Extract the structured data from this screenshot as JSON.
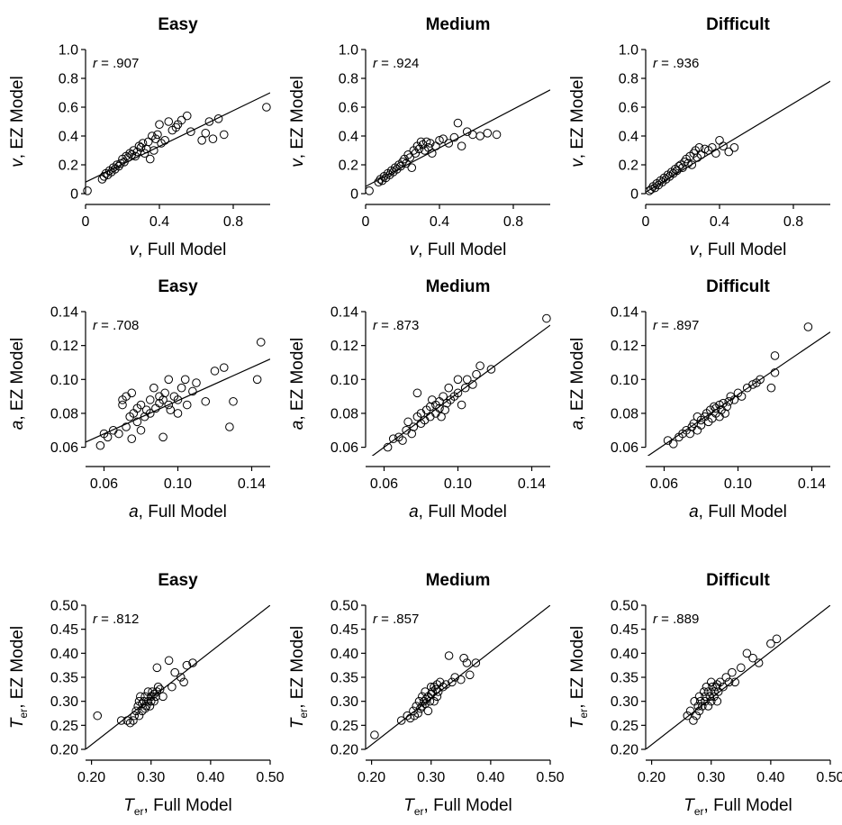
{
  "chart_data": [
    {
      "type": "scatter",
      "title": "Easy",
      "param": "v",
      "xlabel": "Full Model",
      "ylabel": "EZ Model",
      "r_label": "r",
      "r_value": ".907",
      "xlim": [
        0,
        1.0
      ],
      "ylim": [
        0,
        1.0
      ],
      "xticks": [
        "0",
        "0.4",
        "0.8"
      ],
      "xtick_values": [
        0,
        0.4,
        0.8
      ],
      "yticks": [
        "0",
        "0.2",
        "0.4",
        "0.6",
        "0.8",
        "1.0"
      ],
      "ytick_values": [
        0,
        0.2,
        0.4,
        0.6,
        0.8,
        1.0
      ],
      "fit_line": [
        [
          0,
          0.08
        ],
        [
          1,
          0.7
        ]
      ],
      "x": [
        0.01,
        0.09,
        0.1,
        0.11,
        0.12,
        0.13,
        0.14,
        0.15,
        0.16,
        0.17,
        0.18,
        0.19,
        0.2,
        0.21,
        0.22,
        0.23,
        0.24,
        0.25,
        0.26,
        0.27,
        0.28,
        0.29,
        0.3,
        0.31,
        0.32,
        0.33,
        0.34,
        0.35,
        0.36,
        0.37,
        0.38,
        0.39,
        0.4,
        0.41,
        0.43,
        0.45,
        0.47,
        0.49,
        0.5,
        0.52,
        0.55,
        0.57,
        0.63,
        0.65,
        0.67,
        0.69,
        0.72,
        0.75,
        0.98
      ],
      "y": [
        0.02,
        0.1,
        0.12,
        0.14,
        0.13,
        0.16,
        0.15,
        0.18,
        0.17,
        0.2,
        0.19,
        0.21,
        0.24,
        0.22,
        0.26,
        0.25,
        0.28,
        0.27,
        0.3,
        0.26,
        0.29,
        0.33,
        0.32,
        0.35,
        0.28,
        0.31,
        0.36,
        0.24,
        0.4,
        0.3,
        0.38,
        0.41,
        0.48,
        0.35,
        0.37,
        0.5,
        0.44,
        0.46,
        0.48,
        0.51,
        0.54,
        0.43,
        0.37,
        0.42,
        0.5,
        0.38,
        0.52,
        0.41,
        0.6
      ]
    },
    {
      "type": "scatter",
      "title": "Medium",
      "param": "v",
      "xlabel": "Full Model",
      "ylabel": "EZ Model",
      "r_label": "r",
      "r_value": ".924",
      "xlim": [
        0,
        1.0
      ],
      "ylim": [
        0,
        1.0
      ],
      "xticks": [
        "0",
        "0.4",
        "0.8"
      ],
      "xtick_values": [
        0,
        0.4,
        0.8
      ],
      "yticks": [
        "0",
        "0.2",
        "0.4",
        "0.6",
        "0.8",
        "1.0"
      ],
      "ytick_values": [
        0,
        0.2,
        0.4,
        0.6,
        0.8,
        1.0
      ],
      "fit_line": [
        [
          0,
          0.05
        ],
        [
          1,
          0.72
        ]
      ],
      "x": [
        0.02,
        0.07,
        0.08,
        0.09,
        0.1,
        0.11,
        0.12,
        0.13,
        0.14,
        0.15,
        0.16,
        0.17,
        0.18,
        0.19,
        0.2,
        0.21,
        0.22,
        0.23,
        0.24,
        0.25,
        0.26,
        0.27,
        0.28,
        0.29,
        0.3,
        0.31,
        0.32,
        0.33,
        0.34,
        0.35,
        0.36,
        0.38,
        0.4,
        0.42,
        0.45,
        0.48,
        0.5,
        0.52,
        0.55,
        0.58,
        0.62,
        0.66,
        0.71
      ],
      "y": [
        0.02,
        0.08,
        0.1,
        0.09,
        0.12,
        0.11,
        0.14,
        0.13,
        0.16,
        0.15,
        0.18,
        0.17,
        0.2,
        0.19,
        0.22,
        0.24,
        0.21,
        0.27,
        0.25,
        0.18,
        0.3,
        0.28,
        0.33,
        0.31,
        0.36,
        0.34,
        0.3,
        0.36,
        0.32,
        0.35,
        0.28,
        0.33,
        0.37,
        0.38,
        0.35,
        0.39,
        0.49,
        0.33,
        0.43,
        0.41,
        0.4,
        0.42,
        0.41
      ]
    },
    {
      "type": "scatter",
      "title": "Difficult",
      "param": "v",
      "xlabel": "Full Model",
      "ylabel": "EZ Model",
      "r_label": "r",
      "r_value": ".936",
      "xlim": [
        0,
        1.0
      ],
      "ylim": [
        0,
        1.0
      ],
      "xticks": [
        "0",
        "0.4",
        "0.8"
      ],
      "xtick_values": [
        0,
        0.4,
        0.8
      ],
      "yticks": [
        "0",
        "0.2",
        "0.4",
        "0.6",
        "0.8",
        "1.0"
      ],
      "ytick_values": [
        0,
        0.2,
        0.4,
        0.6,
        0.8,
        1.0
      ],
      "fit_line": [
        [
          0,
          0.01
        ],
        [
          1,
          0.78
        ]
      ],
      "x": [
        0.02,
        0.03,
        0.04,
        0.05,
        0.06,
        0.07,
        0.08,
        0.09,
        0.1,
        0.11,
        0.12,
        0.13,
        0.14,
        0.15,
        0.16,
        0.17,
        0.18,
        0.19,
        0.2,
        0.21,
        0.22,
        0.23,
        0.24,
        0.25,
        0.26,
        0.27,
        0.28,
        0.29,
        0.3,
        0.32,
        0.34,
        0.36,
        0.38,
        0.4,
        0.42,
        0.45,
        0.48
      ],
      "y": [
        0.02,
        0.03,
        0.05,
        0.04,
        0.07,
        0.06,
        0.09,
        0.08,
        0.11,
        0.1,
        0.13,
        0.12,
        0.15,
        0.14,
        0.17,
        0.16,
        0.19,
        0.2,
        0.18,
        0.22,
        0.24,
        0.21,
        0.26,
        0.2,
        0.28,
        0.3,
        0.25,
        0.32,
        0.27,
        0.31,
        0.3,
        0.32,
        0.28,
        0.37,
        0.33,
        0.29,
        0.32
      ]
    },
    {
      "type": "scatter",
      "title": "Easy",
      "param": "a",
      "xlabel": "Full Model",
      "ylabel": "EZ Model",
      "r_label": "r",
      "r_value": ".708",
      "xlim": [
        0.05,
        0.15
      ],
      "ylim": [
        0.055,
        0.14
      ],
      "xticks": [
        "0.06",
        "0.10",
        "0.14"
      ],
      "xtick_values": [
        0.06,
        0.1,
        0.14
      ],
      "yticks": [
        "0.06",
        "0.08",
        "0.10",
        "0.12",
        "0.14"
      ],
      "ytick_values": [
        0.06,
        0.08,
        0.1,
        0.12,
        0.14
      ],
      "fit_line": [
        [
          0.05,
          0.063
        ],
        [
          0.15,
          0.112
        ]
      ],
      "x": [
        0.058,
        0.06,
        0.062,
        0.065,
        0.068,
        0.07,
        0.07,
        0.072,
        0.072,
        0.074,
        0.075,
        0.075,
        0.076,
        0.078,
        0.078,
        0.08,
        0.08,
        0.082,
        0.083,
        0.085,
        0.085,
        0.087,
        0.088,
        0.09,
        0.09,
        0.092,
        0.092,
        0.093,
        0.095,
        0.095,
        0.096,
        0.098,
        0.1,
        0.1,
        0.102,
        0.104,
        0.105,
        0.108,
        0.11,
        0.115,
        0.12,
        0.125,
        0.128,
        0.13,
        0.143,
        0.145
      ],
      "y": [
        0.061,
        0.068,
        0.066,
        0.07,
        0.068,
        0.085,
        0.088,
        0.072,
        0.09,
        0.078,
        0.092,
        0.065,
        0.08,
        0.075,
        0.083,
        0.07,
        0.085,
        0.078,
        0.082,
        0.08,
        0.088,
        0.095,
        0.083,
        0.09,
        0.086,
        0.088,
        0.066,
        0.092,
        0.085,
        0.1,
        0.082,
        0.09,
        0.088,
        0.08,
        0.095,
        0.1,
        0.085,
        0.093,
        0.098,
        0.087,
        0.105,
        0.107,
        0.072,
        0.087,
        0.1,
        0.122
      ]
    },
    {
      "type": "scatter",
      "title": "Medium",
      "param": "a",
      "xlabel": "Full Model",
      "ylabel": "EZ Model",
      "r_label": "r",
      "r_value": ".873",
      "xlim": [
        0.05,
        0.15
      ],
      "ylim": [
        0.055,
        0.14
      ],
      "xticks": [
        "0.06",
        "0.10",
        "0.14"
      ],
      "xtick_values": [
        0.06,
        0.1,
        0.14
      ],
      "yticks": [
        "0.06",
        "0.08",
        "0.10",
        "0.12",
        "0.14"
      ],
      "ytick_values": [
        0.06,
        0.08,
        0.1,
        0.12,
        0.14
      ],
      "fit_line": [
        [
          0.05,
          0.052
        ],
        [
          0.15,
          0.132
        ]
      ],
      "x": [
        0.062,
        0.065,
        0.068,
        0.07,
        0.072,
        0.073,
        0.075,
        0.076,
        0.078,
        0.078,
        0.08,
        0.08,
        0.082,
        0.083,
        0.085,
        0.085,
        0.086,
        0.088,
        0.088,
        0.09,
        0.09,
        0.091,
        0.092,
        0.093,
        0.094,
        0.095,
        0.096,
        0.098,
        0.1,
        0.1,
        0.102,
        0.104,
        0.105,
        0.108,
        0.11,
        0.112,
        0.118,
        0.148
      ],
      "y": [
        0.06,
        0.065,
        0.066,
        0.064,
        0.07,
        0.075,
        0.068,
        0.072,
        0.078,
        0.092,
        0.074,
        0.08,
        0.076,
        0.082,
        0.084,
        0.078,
        0.088,
        0.08,
        0.085,
        0.083,
        0.087,
        0.078,
        0.09,
        0.082,
        0.086,
        0.095,
        0.088,
        0.09,
        0.092,
        0.1,
        0.085,
        0.095,
        0.1,
        0.097,
        0.103,
        0.108,
        0.106,
        0.136
      ]
    },
    {
      "type": "scatter",
      "title": "Difficult",
      "param": "a",
      "xlabel": "Full Model",
      "ylabel": "EZ Model",
      "r_label": "r",
      "r_value": ".897",
      "xlim": [
        0.05,
        0.15
      ],
      "ylim": [
        0.055,
        0.14
      ],
      "xticks": [
        "0.06",
        "0.10",
        "0.14"
      ],
      "xtick_values": [
        0.06,
        0.1,
        0.14
      ],
      "yticks": [
        "0.06",
        "0.08",
        "0.10",
        "0.12",
        "0.14"
      ],
      "ytick_values": [
        0.06,
        0.08,
        0.1,
        0.12,
        0.14
      ],
      "fit_line": [
        [
          0.05,
          0.054
        ],
        [
          0.15,
          0.128
        ]
      ],
      "x": [
        0.062,
        0.065,
        0.068,
        0.07,
        0.072,
        0.074,
        0.075,
        0.076,
        0.078,
        0.078,
        0.08,
        0.08,
        0.082,
        0.083,
        0.084,
        0.085,
        0.086,
        0.087,
        0.088,
        0.088,
        0.09,
        0.09,
        0.091,
        0.092,
        0.093,
        0.094,
        0.095,
        0.096,
        0.098,
        0.1,
        0.102,
        0.105,
        0.108,
        0.11,
        0.112,
        0.118,
        0.12,
        0.12,
        0.138
      ],
      "y": [
        0.064,
        0.062,
        0.066,
        0.068,
        0.07,
        0.068,
        0.072,
        0.074,
        0.07,
        0.078,
        0.073,
        0.076,
        0.078,
        0.08,
        0.075,
        0.082,
        0.077,
        0.084,
        0.08,
        0.083,
        0.078,
        0.085,
        0.082,
        0.086,
        0.08,
        0.084,
        0.087,
        0.09,
        0.088,
        0.092,
        0.09,
        0.095,
        0.097,
        0.098,
        0.1,
        0.095,
        0.104,
        0.114,
        0.131
      ]
    },
    {
      "type": "scatter",
      "title": "Easy",
      "param": "T",
      "param_sub": "er",
      "xlabel": "Full Model",
      "ylabel": "EZ Model",
      "r_label": "r",
      "r_value": ".812",
      "xlim": [
        0.19,
        0.5
      ],
      "ylim": [
        0.2,
        0.5
      ],
      "xticks": [
        "0.20",
        "0.30",
        "0.40",
        "0.50"
      ],
      "xtick_values": [
        0.2,
        0.3,
        0.4,
        0.5
      ],
      "yticks": [
        "0.20",
        "0.25",
        "0.30",
        "0.35",
        "0.40",
        "0.45",
        "0.50"
      ],
      "ytick_values": [
        0.2,
        0.25,
        0.3,
        0.35,
        0.4,
        0.45,
        0.5
      ],
      "fit_line": [
        [
          0.19,
          0.2
        ],
        [
          0.5,
          0.5
        ]
      ],
      "x": [
        0.21,
        0.25,
        0.26,
        0.265,
        0.27,
        0.272,
        0.275,
        0.278,
        0.28,
        0.28,
        0.282,
        0.285,
        0.285,
        0.288,
        0.29,
        0.29,
        0.292,
        0.295,
        0.295,
        0.298,
        0.3,
        0.3,
        0.302,
        0.305,
        0.305,
        0.308,
        0.31,
        0.31,
        0.312,
        0.315,
        0.32,
        0.33,
        0.335,
        0.34,
        0.35,
        0.355,
        0.36,
        0.37
      ],
      "y": [
        0.27,
        0.26,
        0.26,
        0.255,
        0.26,
        0.27,
        0.28,
        0.29,
        0.3,
        0.27,
        0.31,
        0.28,
        0.295,
        0.3,
        0.285,
        0.31,
        0.29,
        0.3,
        0.32,
        0.29,
        0.31,
        0.3,
        0.32,
        0.3,
        0.315,
        0.31,
        0.32,
        0.37,
        0.33,
        0.325,
        0.31,
        0.385,
        0.33,
        0.36,
        0.35,
        0.34,
        0.375,
        0.38
      ]
    },
    {
      "type": "scatter",
      "title": "Medium",
      "param": "T",
      "param_sub": "er",
      "xlabel": "Full Model",
      "ylabel": "EZ Model",
      "r_label": "r",
      "r_value": ".857",
      "xlim": [
        0.19,
        0.5
      ],
      "ylim": [
        0.2,
        0.5
      ],
      "xticks": [
        "0.20",
        "0.30",
        "0.40",
        "0.50"
      ],
      "xtick_values": [
        0.2,
        0.3,
        0.4,
        0.5
      ],
      "yticks": [
        "0.20",
        "0.25",
        "0.30",
        "0.35",
        "0.40",
        "0.45",
        "0.50"
      ],
      "ytick_values": [
        0.2,
        0.25,
        0.3,
        0.35,
        0.4,
        0.45,
        0.5
      ],
      "fit_line": [
        [
          0.19,
          0.2
        ],
        [
          0.5,
          0.5
        ]
      ],
      "x": [
        0.205,
        0.25,
        0.26,
        0.265,
        0.27,
        0.272,
        0.275,
        0.278,
        0.28,
        0.282,
        0.285,
        0.285,
        0.288,
        0.29,
        0.29,
        0.292,
        0.295,
        0.295,
        0.298,
        0.3,
        0.3,
        0.302,
        0.305,
        0.305,
        0.308,
        0.31,
        0.31,
        0.312,
        0.315,
        0.32,
        0.325,
        0.33,
        0.335,
        0.34,
        0.35,
        0.355,
        0.36,
        0.365,
        0.375
      ],
      "y": [
        0.23,
        0.26,
        0.27,
        0.265,
        0.28,
        0.27,
        0.29,
        0.275,
        0.3,
        0.285,
        0.29,
        0.31,
        0.3,
        0.295,
        0.32,
        0.305,
        0.31,
        0.28,
        0.3,
        0.33,
        0.315,
        0.32,
        0.3,
        0.33,
        0.325,
        0.335,
        0.31,
        0.32,
        0.34,
        0.33,
        0.335,
        0.395,
        0.34,
        0.35,
        0.345,
        0.39,
        0.38,
        0.355,
        0.38
      ]
    },
    {
      "type": "scatter",
      "title": "Difficult",
      "param": "T",
      "param_sub": "er",
      "xlabel": "Full Model",
      "ylabel": "EZ Model",
      "r_label": "r",
      "r_value": ".889",
      "xlim": [
        0.19,
        0.5
      ],
      "ylim": [
        0.2,
        0.5
      ],
      "xticks": [
        "0.20",
        "0.30",
        "0.40",
        "0.50"
      ],
      "xtick_values": [
        0.2,
        0.3,
        0.4,
        0.5
      ],
      "yticks": [
        "0.20",
        "0.25",
        "0.30",
        "0.35",
        "0.40",
        "0.45",
        "0.50"
      ],
      "ytick_values": [
        0.2,
        0.25,
        0.3,
        0.35,
        0.4,
        0.45,
        0.5
      ],
      "fit_line": [
        [
          0.19,
          0.2
        ],
        [
          0.5,
          0.5
        ]
      ],
      "x": [
        0.26,
        0.265,
        0.27,
        0.272,
        0.275,
        0.278,
        0.28,
        0.28,
        0.282,
        0.285,
        0.288,
        0.29,
        0.29,
        0.292,
        0.295,
        0.295,
        0.298,
        0.3,
        0.3,
        0.302,
        0.305,
        0.305,
        0.308,
        0.31,
        0.31,
        0.312,
        0.315,
        0.32,
        0.325,
        0.33,
        0.335,
        0.34,
        0.35,
        0.36,
        0.37,
        0.38,
        0.4,
        0.41
      ],
      "y": [
        0.27,
        0.28,
        0.26,
        0.3,
        0.27,
        0.29,
        0.28,
        0.31,
        0.3,
        0.29,
        0.32,
        0.3,
        0.31,
        0.33,
        0.29,
        0.32,
        0.31,
        0.3,
        0.34,
        0.33,
        0.32,
        0.31,
        0.33,
        0.3,
        0.335,
        0.32,
        0.34,
        0.33,
        0.35,
        0.34,
        0.36,
        0.34,
        0.37,
        0.4,
        0.39,
        0.38,
        0.42,
        0.43
      ]
    }
  ]
}
